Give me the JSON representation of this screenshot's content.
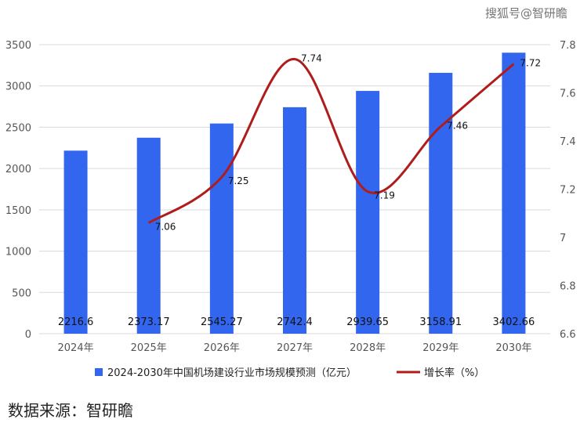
{
  "watermark": "搜狐号@智研瞻",
  "source": "数据来源：智研瞻",
  "chart_data": {
    "type": "bar+line",
    "categories": [
      "2024年",
      "2025年",
      "2026年",
      "2027年",
      "2028年",
      "2029年",
      "2030年"
    ],
    "bar_series": {
      "name": "2024-2030年中国机场建设行业市场规模预测（亿元）",
      "values": [
        2216.6,
        2373.17,
        2545.27,
        2742.4,
        2939.65,
        3158.91,
        3402.66
      ],
      "labels": [
        "2216.6",
        "2373.17",
        "2545.27",
        "2742.4",
        "2939.65",
        "3158.91",
        "3402.66"
      ],
      "color": "#3366ee"
    },
    "line_series": {
      "name": "增长率（%）",
      "values": [
        null,
        7.06,
        7.25,
        7.74,
        7.19,
        7.46,
        7.72
      ],
      "labels": [
        "",
        "7.06",
        "7.25",
        "7.74",
        "7.19",
        "7.46",
        "7.72"
      ],
      "color": "#b01c1c"
    },
    "y_left": {
      "range": [
        0,
        3500
      ],
      "ticks": [
        0,
        500,
        1000,
        1500,
        2000,
        2500,
        3000,
        3500
      ],
      "tick_labels": [
        "0",
        "500",
        "1000",
        "1500",
        "2000",
        "2500",
        "3000",
        "3500"
      ]
    },
    "y_right": {
      "range": [
        6.6,
        7.8
      ],
      "ticks": [
        6.6,
        6.8,
        7.0,
        7.2,
        7.4,
        7.6,
        7.8
      ],
      "tick_labels": [
        "6.6",
        "6.8",
        "7",
        "7.2",
        "7.4",
        "7.6",
        "7.8"
      ]
    },
    "grid": true,
    "legend_position": "bottom"
  }
}
